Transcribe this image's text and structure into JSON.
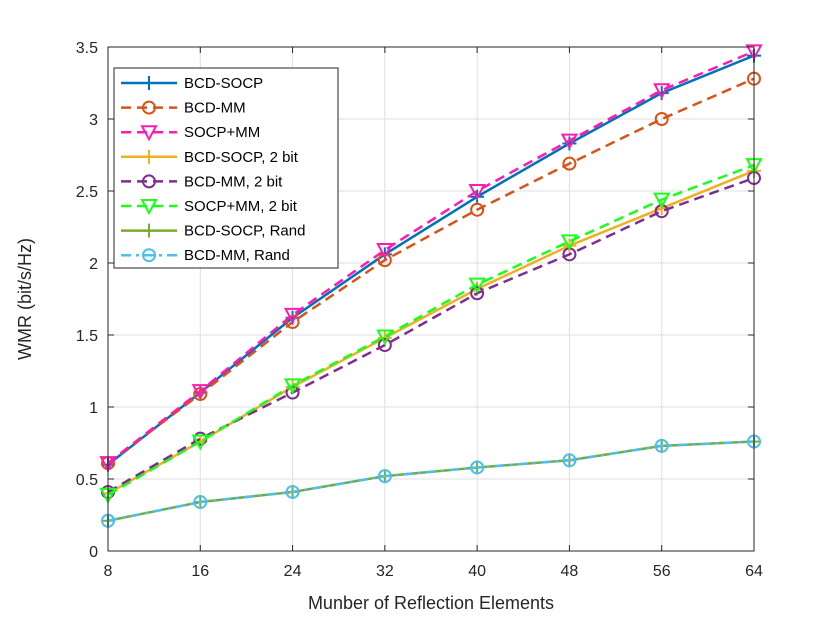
{
  "chart_data": {
    "type": "line",
    "title": "",
    "xlabel": "Munber of Reflection Elements",
    "ylabel": "WMR (bit/s/Hz)",
    "x": [
      8,
      16,
      24,
      32,
      40,
      48,
      56,
      64
    ],
    "xticks": [
      "8",
      "16",
      "24",
      "32",
      "40",
      "48",
      "56",
      "64"
    ],
    "yticks": [
      "0",
      "0.5",
      "1",
      "1.5",
      "2",
      "2.5",
      "3",
      "3.5"
    ],
    "xlim": [
      8,
      64
    ],
    "ylim": [
      0,
      3.5
    ],
    "grid": true,
    "legend_position": "top-left",
    "series": [
      {
        "name": "BCD-SOCP",
        "values": [
          0.6,
          1.1,
          1.62,
          2.06,
          2.46,
          2.83,
          3.18,
          3.44
        ],
        "color": "#0072BD",
        "dash": "solid",
        "marker": "plus"
      },
      {
        "name": "BCD-MM",
        "values": [
          0.61,
          1.09,
          1.59,
          2.02,
          2.37,
          2.69,
          3.0,
          3.28
        ],
        "color": "#D95319",
        "dash": "dashed",
        "marker": "circle"
      },
      {
        "name": "SOCP+MM",
        "values": [
          0.61,
          1.11,
          1.64,
          2.09,
          2.5,
          2.85,
          3.2,
          3.47
        ],
        "color": "#FF1AB0",
        "dash": "dashed",
        "marker": "triangle-down"
      },
      {
        "name": "BCD-SOCP, 2 bit",
        "values": [
          0.4,
          0.76,
          1.14,
          1.48,
          1.82,
          2.12,
          2.38,
          2.64
        ],
        "color": "#EDB120",
        "dash": "solid",
        "marker": "plus"
      },
      {
        "name": "BCD-MM, 2 bit",
        "values": [
          0.41,
          0.78,
          1.1,
          1.43,
          1.79,
          2.06,
          2.36,
          2.59
        ],
        "color": "#7E2F8E",
        "dash": "dashed",
        "marker": "circle"
      },
      {
        "name": "SOCP+MM, 2 bit",
        "values": [
          0.39,
          0.76,
          1.15,
          1.49,
          1.85,
          2.15,
          2.44,
          2.68
        ],
        "color": "#1AFF1A",
        "dash": "dashed",
        "marker": "triangle-down"
      },
      {
        "name": "BCD-SOCP, Rand",
        "values": [
          0.21,
          0.34,
          0.41,
          0.52,
          0.58,
          0.63,
          0.73,
          0.76
        ],
        "color": "#77AC30",
        "dash": "solid",
        "marker": "plus"
      },
      {
        "name": "BCD-MM, Rand",
        "values": [
          0.21,
          0.34,
          0.41,
          0.52,
          0.58,
          0.63,
          0.73,
          0.76
        ],
        "color": "#4DBEEE",
        "dash": "dashdot",
        "marker": "circle"
      }
    ]
  }
}
